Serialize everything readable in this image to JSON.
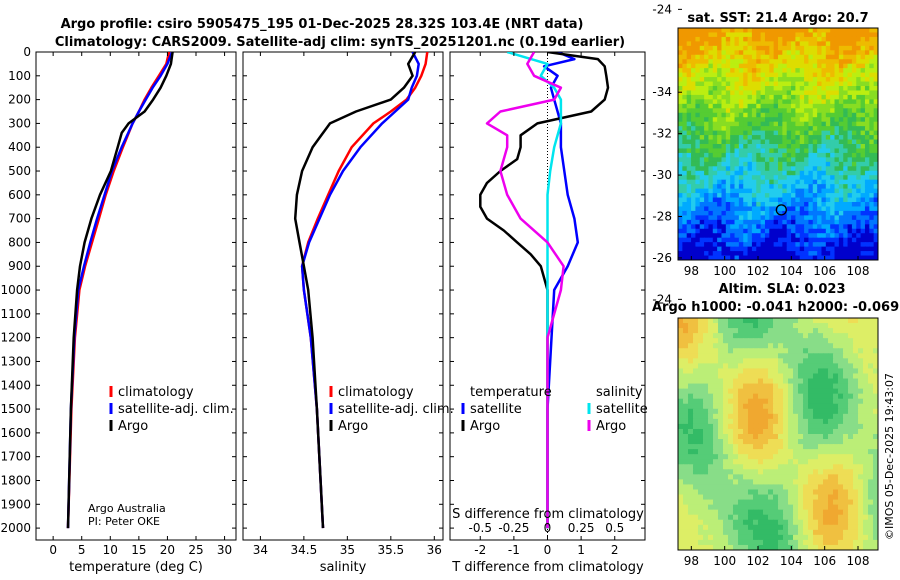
{
  "header": {
    "line1": "Argo profile: csiro 5905475_195 01-Dec-2025 28.32S 103.4E (NRT data)",
    "line2": "Climatology: CARS2009. Satellite-adj clim: synTS_20251201.nc (0.19d earlier)"
  },
  "colors": {
    "climatology": "#ff0000",
    "satellite": "#0000ff",
    "argo": "#000000",
    "sal_satellite": "#00e5ee",
    "sal_argo": "#ee00ee"
  },
  "credit": {
    "line1": "Argo Australia",
    "line2": "PI: Peter OKE"
  },
  "side_text": "©IMOS 05-Dec-2025 19:43:07",
  "maps": {
    "sst_title": "sat. SST: 21.4 Argo: 20.7",
    "sla_title1": "Altim. SLA: 0.023",
    "sla_title2": "Argo h1000: -0.041 h2000: -0.069",
    "lon_ticks": [
      "98",
      "100",
      "102",
      "104",
      "106",
      "108"
    ],
    "lat_ticks": [
      "-24",
      "-26",
      "-28",
      "-30",
      "-32",
      "-34"
    ],
    "float_marker": {
      "lon": 103.4,
      "lat": -28.32
    }
  },
  "chart_data": [
    {
      "type": "line",
      "name": "temperature-profile",
      "xlabel": "temperature (deg C)",
      "ylabel": "depth",
      "xlim": [
        -3,
        32
      ],
      "ylim": [
        2050,
        0
      ],
      "xticks": [
        0,
        5,
        10,
        15,
        20,
        25,
        30
      ],
      "yticks": [
        0,
        100,
        200,
        300,
        400,
        500,
        600,
        700,
        800,
        900,
        1000,
        1100,
        1200,
        1300,
        1400,
        1500,
        1600,
        1700,
        1800,
        1900,
        2000
      ],
      "legend": [
        "climatology",
        "satellite-adj. clim.",
        "Argo"
      ],
      "series": [
        {
          "name": "climatology",
          "depth": [
            0,
            50,
            100,
            150,
            200,
            250,
            300,
            400,
            500,
            600,
            700,
            800,
            900,
            1000,
            1200,
            1500,
            2000
          ],
          "values": [
            20.3,
            19.8,
            18.5,
            17.2,
            16.0,
            15.0,
            13.9,
            12.2,
            10.6,
            9.2,
            8.0,
            6.8,
            5.6,
            4.6,
            3.8,
            3.2,
            2.6
          ]
        },
        {
          "name": "satellite-adj. clim.",
          "depth": [
            0,
            50,
            100,
            150,
            200,
            250,
            300,
            400,
            500,
            600,
            700,
            800,
            900,
            1000,
            1200,
            1500,
            2000
          ],
          "values": [
            20.8,
            20.0,
            18.8,
            17.4,
            16.2,
            15.0,
            13.9,
            12.0,
            10.3,
            9.0,
            7.7,
            6.5,
            5.4,
            4.4,
            3.7,
            3.1,
            2.6
          ]
        },
        {
          "name": "Argo",
          "depth": [
            0,
            50,
            100,
            150,
            200,
            250,
            300,
            340,
            400,
            500,
            600,
            700,
            800,
            900,
            1000,
            1200,
            1500,
            2000
          ],
          "values": [
            20.9,
            20.6,
            19.8,
            18.8,
            17.5,
            16.0,
            13.2,
            12.0,
            11.3,
            10.1,
            8.2,
            6.7,
            5.5,
            4.7,
            4.2,
            3.6,
            3.1,
            2.6
          ]
        }
      ]
    },
    {
      "type": "line",
      "name": "salinity-profile",
      "xlabel": "salinity",
      "xlim": [
        33.8,
        36.1
      ],
      "ylim": [
        2050,
        0
      ],
      "xticks": [
        34,
        34.5,
        35,
        35.5,
        36
      ],
      "xticklabels": [
        "34",
        "34.5",
        "35",
        "35.5",
        "36"
      ],
      "legend": [
        "climatology",
        "satellite-adj. clim.",
        "Argo"
      ],
      "series": [
        {
          "name": "climatology",
          "depth": [
            0,
            50,
            100,
            150,
            200,
            250,
            300,
            400,
            500,
            600,
            700,
            800,
            900,
            1000,
            1200,
            1500,
            2000
          ],
          "values": [
            35.92,
            35.9,
            35.85,
            35.78,
            35.68,
            35.5,
            35.3,
            35.05,
            34.9,
            34.78,
            34.66,
            34.55,
            34.48,
            34.5,
            34.58,
            34.65,
            34.72
          ]
        },
        {
          "name": "satellite-adj. clim.",
          "depth": [
            0,
            50,
            100,
            150,
            200,
            250,
            300,
            400,
            500,
            600,
            700,
            800,
            900,
            1000,
            1200,
            1500,
            2000
          ],
          "values": [
            35.75,
            35.82,
            35.8,
            35.74,
            35.7,
            35.55,
            35.4,
            35.15,
            34.95,
            34.8,
            34.68,
            34.56,
            34.48,
            34.5,
            34.58,
            34.65,
            34.72
          ]
        },
        {
          "name": "Argo",
          "depth": [
            0,
            50,
            100,
            150,
            200,
            250,
            300,
            350,
            400,
            500,
            600,
            700,
            800,
            900,
            1000,
            1200,
            1500,
            2000
          ],
          "values": [
            35.78,
            35.7,
            35.75,
            35.65,
            35.5,
            35.1,
            34.8,
            34.7,
            34.6,
            34.48,
            34.42,
            34.4,
            34.45,
            34.5,
            34.55,
            34.6,
            34.65,
            34.72
          ]
        }
      ]
    },
    {
      "type": "line",
      "name": "difference-profile",
      "xlabel": "T difference from climatology",
      "xlabel2": "S difference from climatology",
      "xlim": [
        -2.9,
        2.9
      ],
      "ylim": [
        2050,
        0
      ],
      "xticks": [
        -2,
        -1,
        0,
        1,
        2
      ],
      "xticklabels": [
        "-2",
        "-1",
        "0",
        "1",
        "2"
      ],
      "sticks": [
        -0.5,
        -0.25,
        0,
        0.25,
        0.5
      ],
      "sticklabels": [
        "-0.5",
        "-0.25",
        "0",
        "0.25",
        "0.5"
      ],
      "legend_titles": [
        "temperature",
        "salinity"
      ],
      "legend_labels": [
        "satellite",
        "Argo",
        "satellite",
        "Argo"
      ],
      "series": [
        {
          "name": "T satellite",
          "depth": [
            0,
            30,
            60,
            100,
            150,
            200,
            300,
            400,
            500,
            600,
            700,
            800,
            900,
            1000,
            1500,
            2000
          ],
          "values": [
            0.3,
            0.8,
            -0.1,
            0.3,
            0.1,
            0.2,
            0.4,
            0.4,
            0.5,
            0.6,
            0.8,
            0.9,
            0.6,
            0.2,
            0.0,
            0.0
          ]
        },
        {
          "name": "T Argo",
          "depth": [
            0,
            30,
            60,
            100,
            150,
            200,
            250,
            300,
            350,
            400,
            450,
            500,
            550,
            600,
            650,
            700,
            750,
            800,
            850,
            900,
            1000,
            1200,
            1500,
            2000
          ],
          "values": [
            0.0,
            1.5,
            1.7,
            1.75,
            1.8,
            1.7,
            1.3,
            -0.3,
            -0.8,
            -0.8,
            -0.9,
            -1.4,
            -1.8,
            -2.0,
            -2.0,
            -1.8,
            -1.3,
            -0.9,
            -0.5,
            -0.2,
            0.0,
            0.0,
            0.0,
            0.0
          ]
        },
        {
          "name": "S satellite",
          "depth": [
            0,
            50,
            100,
            150,
            200,
            300,
            400,
            500,
            600,
            700,
            800,
            900,
            1000,
            1500,
            2000
          ],
          "values": [
            -0.3,
            0.0,
            -0.05,
            0.05,
            0.1,
            0.1,
            0.05,
            0.02,
            0.0,
            0.0,
            0.0,
            0.0,
            0.0,
            0.0,
            0.0
          ]
        },
        {
          "name": "S Argo",
          "depth": [
            0,
            50,
            100,
            150,
            200,
            250,
            300,
            350,
            400,
            500,
            600,
            700,
            800,
            900,
            1000,
            1200,
            1500,
            2000
          ],
          "values": [
            -0.1,
            -0.15,
            -0.1,
            0.1,
            0.05,
            -0.35,
            -0.45,
            -0.3,
            -0.3,
            -0.35,
            -0.3,
            -0.2,
            0.0,
            0.12,
            0.1,
            0.0,
            0.0,
            0.0
          ]
        }
      ]
    }
  ]
}
